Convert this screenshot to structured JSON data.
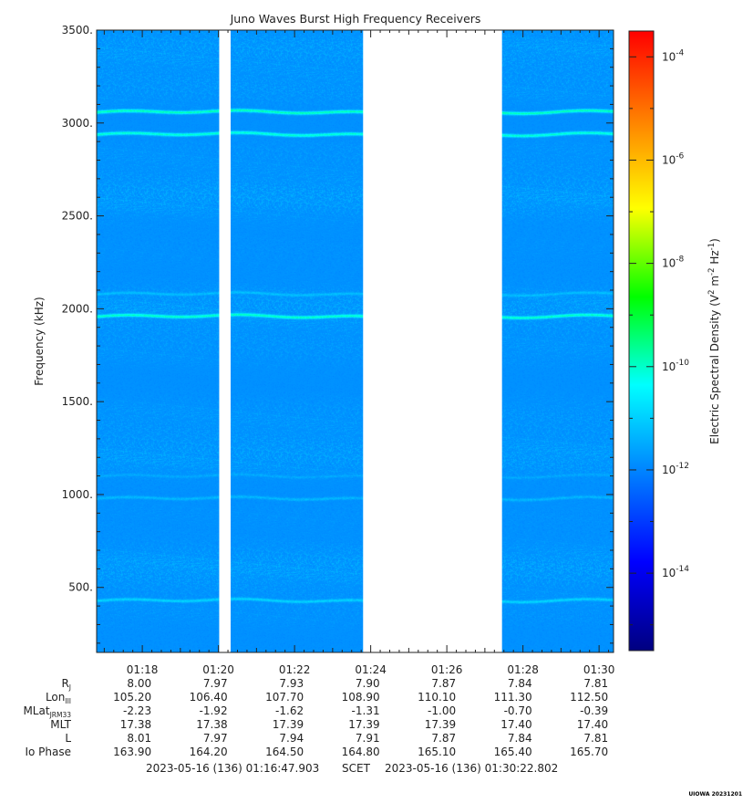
{
  "chart_data": {
    "type": "heatmap",
    "title": "Juno Waves Burst High Frequency Receivers",
    "ylabel": "Frequency (kHz)",
    "colorbar_label": {
      "prefix": "Electric Spectral Density (V",
      "sup1": "2",
      "mid": " m",
      "sup2": "-2",
      "mid2": " Hz",
      "sup3": "-1",
      "suffix": ")"
    },
    "ylim": [
      150,
      3500
    ],
    "y_ticks": [
      500,
      1000,
      1500,
      2000,
      2500,
      3000,
      3500
    ],
    "y_tick_labels": [
      "500.",
      "1000.",
      "1500.",
      "2000.",
      "2500.",
      "3000.",
      "3500."
    ],
    "time_range_minutes": [
      16.8,
      30.38
    ],
    "x_ticks_minutes": [
      18,
      20,
      22,
      24,
      26,
      28,
      30
    ],
    "x_tick_labels": [
      "01:18",
      "01:20",
      "01:22",
      "01:24",
      "01:26",
      "01:28",
      "01:30"
    ],
    "data_gaps_minutes": [
      [
        20.02,
        20.32
      ],
      [
        23.8,
        27.45
      ]
    ],
    "background_level_log10": -12,
    "emission_bands": [
      {
        "freq_khz": 3060,
        "log10_level": -9.8
      },
      {
        "freq_khz": 2940,
        "log10_level": -10.0
      },
      {
        "freq_khz": 2080,
        "log10_level": -11.2
      },
      {
        "freq_khz": 1960,
        "log10_level": -9.9
      },
      {
        "freq_khz": 1100,
        "log10_level": -11.5
      },
      {
        "freq_khz": 980,
        "log10_level": -11.3
      },
      {
        "freq_khz": 430,
        "log10_level": -10.9
      }
    ],
    "colorbar": {
      "range_log10": [
        -15.5,
        -3.5
      ],
      "tick_exponents": [
        -14,
        -12,
        -10,
        -8,
        -6,
        -4
      ],
      "tick_base": "10",
      "colormap": [
        "#000080",
        "#0000ff",
        "#0080ff",
        "#00ffff",
        "#00ff00",
        "#ffff00",
        "#ff8000",
        "#ff0000"
      ]
    },
    "ephemeris": {
      "row_labels": [
        {
          "main": "R",
          "sub": "J"
        },
        {
          "main": "Lon",
          "sub": "III"
        },
        {
          "main": "MLat",
          "sub": "JRM33"
        },
        {
          "main": "MLT",
          "sub": ""
        },
        {
          "main": "L",
          "sub": ""
        },
        {
          "main": "Io Phase",
          "sub": ""
        }
      ],
      "rows": [
        [
          "8.00",
          "7.97",
          "7.93",
          "7.90",
          "7.87",
          "7.84",
          "7.81"
        ],
        [
          "105.20",
          "106.40",
          "107.70",
          "108.90",
          "110.10",
          "111.30",
          "112.50"
        ],
        [
          "-2.23",
          "-1.92",
          "-1.62",
          "-1.31",
          "-1.00",
          "-0.70",
          "-0.39"
        ],
        [
          "17.38",
          "17.38",
          "17.39",
          "17.39",
          "17.39",
          "17.40",
          "17.40"
        ],
        [
          "8.01",
          "7.97",
          "7.94",
          "7.91",
          "7.87",
          "7.84",
          "7.81"
        ],
        [
          "163.90",
          "164.20",
          "164.50",
          "164.80",
          "165.10",
          "165.40",
          "165.70"
        ]
      ]
    },
    "footer": {
      "start": "2023-05-16 (136) 01:16:47.903",
      "scet": "SCET",
      "end": "2023-05-16 (136) 01:30:22.802"
    },
    "stamp": "UIOWA 20231201"
  }
}
